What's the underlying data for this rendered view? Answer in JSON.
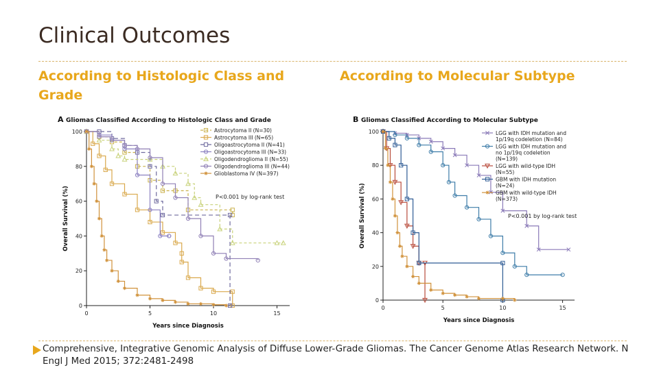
{
  "slide": {
    "title": "Clinical Outcomes",
    "left_heading": "According to Histologic Class and Grade",
    "right_heading": "According to Molecular Subtype",
    "citation": "Comprehensive, Integrative Genomic Analysis of Diffuse Lower-Grade Gliomas. The Cancer Genome Atlas Research Network. N Engl J Med 2015; 372:2481-2498",
    "accent_color": "#e8a71c"
  },
  "chart_data": [
    {
      "type": "line",
      "step": true,
      "panel_letter": "A",
      "title": "Gliomas Classified According to Histologic Class and Grade",
      "xlabel": "Years since Diagnosis",
      "ylabel": "Overall Survival (%)",
      "xlim": [
        0,
        16
      ],
      "ylim": [
        0,
        100
      ],
      "xticks": [
        0,
        5,
        10,
        15
      ],
      "yticks": [
        0,
        20,
        40,
        60,
        80,
        100
      ],
      "annotation": "P<0.001 by log-rank test",
      "legend_position": "top-right",
      "series": [
        {
          "name": "Astrocytoma II (N=30)",
          "color": "#c9b04a",
          "dash": "4,3",
          "marker": "square",
          "points": [
            [
              0,
              100
            ],
            [
              1,
              97
            ],
            [
              2,
              94
            ],
            [
              3,
              88
            ],
            [
              4,
              80
            ],
            [
              5,
              72
            ],
            [
              6,
              66
            ],
            [
              7,
              66
            ],
            [
              8,
              55
            ],
            [
              11.5,
              55
            ],
            [
              11.5,
              52
            ]
          ]
        },
        {
          "name": "Astrocytoma III (N=65)",
          "color": "#d9a84a",
          "dash": "",
          "marker": "square",
          "points": [
            [
              0,
              100
            ],
            [
              0.5,
              93
            ],
            [
              1,
              86
            ],
            [
              1.5,
              78
            ],
            [
              2,
              70
            ],
            [
              3,
              64
            ],
            [
              4,
              55
            ],
            [
              5,
              48
            ],
            [
              6,
              42
            ],
            [
              7,
              36
            ],
            [
              7.5,
              30
            ],
            [
              7.5,
              25
            ],
            [
              8,
              16
            ],
            [
              9,
              10
            ],
            [
              10,
              8
            ],
            [
              11.5,
              8
            ],
            [
              11.5,
              0
            ]
          ]
        },
        {
          "name": "Oligoastrocytoma II (N=41)",
          "color": "#6e6a9e",
          "dash": "6,4",
          "marker": "square",
          "points": [
            [
              0,
              100
            ],
            [
              1,
              100
            ],
            [
              2,
              96
            ],
            [
              3,
              92
            ],
            [
              4,
              88
            ],
            [
              5,
              80
            ],
            [
              5.5,
              60
            ],
            [
              6,
              52
            ],
            [
              11.3,
              52
            ],
            [
              11.3,
              0
            ]
          ]
        },
        {
          "name": "Oligoastrocytoma III (N=33)",
          "color": "#8a7fc0",
          "dash": "",
          "marker": "circle",
          "points": [
            [
              0,
              100
            ],
            [
              1,
              98
            ],
            [
              2,
              95
            ],
            [
              3,
              90
            ],
            [
              4,
              75
            ],
            [
              5,
              55
            ],
            [
              5.8,
              40
            ],
            [
              6.5,
              40
            ],
            [
              6.5,
              40
            ]
          ]
        },
        {
          "name": "Oligodendroglioma II (N=55)",
          "color": "#c8d27a",
          "dash": "4,3",
          "marker": "triangle",
          "points": [
            [
              0,
              100
            ],
            [
              1,
              95
            ],
            [
              2,
              90
            ],
            [
              2.5,
              86
            ],
            [
              3,
              84
            ],
            [
              5,
              84
            ],
            [
              6,
              80
            ],
            [
              7,
              76
            ],
            [
              8,
              70
            ],
            [
              8.5,
              62
            ],
            [
              9,
              58
            ],
            [
              10.5,
              44
            ],
            [
              11.5,
              36
            ],
            [
              15,
              36
            ],
            [
              15.5,
              36
            ]
          ]
        },
        {
          "name": "Oligodendroglioma III (N=44)",
          "color": "#8f7fb5",
          "dash": "",
          "marker": "circle",
          "points": [
            [
              0,
              100
            ],
            [
              1,
              97
            ],
            [
              2,
              95
            ],
            [
              3,
              92
            ],
            [
              4,
              90
            ],
            [
              5,
              85
            ],
            [
              6,
              70
            ],
            [
              7,
              62
            ],
            [
              8,
              50
            ],
            [
              9,
              40
            ],
            [
              10,
              30
            ],
            [
              11,
              27
            ],
            [
              13.5,
              26
            ]
          ]
        },
        {
          "name": "Glioblastoma IV (N=397)",
          "color": "#d0913a",
          "dash": "",
          "marker": "star",
          "points": [
            [
              0,
              100
            ],
            [
              0.2,
              90
            ],
            [
              0.4,
              80
            ],
            [
              0.6,
              70
            ],
            [
              0.8,
              60
            ],
            [
              1,
              50
            ],
            [
              1.2,
              40
            ],
            [
              1.4,
              32
            ],
            [
              1.6,
              26
            ],
            [
              2,
              20
            ],
            [
              2.5,
              14
            ],
            [
              3,
              10
            ],
            [
              4,
              6
            ],
            [
              5,
              4
            ],
            [
              6,
              3
            ],
            [
              7,
              2
            ],
            [
              8,
              1
            ],
            [
              9,
              1
            ],
            [
              10,
              0.5
            ],
            [
              11,
              0
            ]
          ]
        }
      ]
    },
    {
      "type": "line",
      "step": true,
      "panel_letter": "B",
      "title": "Gliomas Classified According to Molecular Subtype",
      "xlabel": "Years since Diagnosis",
      "ylabel": "Overall Survival (%)",
      "xlim": [
        0,
        16
      ],
      "ylim": [
        0,
        100
      ],
      "xticks": [
        0,
        5,
        10,
        15
      ],
      "yticks": [
        0,
        20,
        40,
        60,
        80,
        100
      ],
      "annotation": "P<0.001 by log-rank test",
      "legend_position": "top-right",
      "series": [
        {
          "name": "LGG with IDH mutation and 1p/19q codeletion (N=84)",
          "color": "#8a7ab8",
          "dash": "",
          "marker": "x",
          "points": [
            [
              0,
              100
            ],
            [
              1,
              99
            ],
            [
              2,
              98
            ],
            [
              3,
              96
            ],
            [
              4,
              94
            ],
            [
              5,
              90
            ],
            [
              6,
              86
            ],
            [
              7,
              80
            ],
            [
              8,
              74
            ],
            [
              9,
              64
            ],
            [
              10,
              53
            ],
            [
              12,
              44
            ],
            [
              13,
              30
            ],
            [
              15.5,
              30
            ]
          ]
        },
        {
          "name": "LGG with IDH mutation and no 1p/19q codeletion (N=139)",
          "color": "#3d7ca8",
          "dash": "",
          "marker": "circle",
          "points": [
            [
              0,
              100
            ],
            [
              1,
              98
            ],
            [
              2,
              96
            ],
            [
              3,
              92
            ],
            [
              4,
              88
            ],
            [
              5,
              80
            ],
            [
              5.5,
              70
            ],
            [
              6,
              62
            ],
            [
              7,
              55
            ],
            [
              8,
              48
            ],
            [
              9,
              38
            ],
            [
              10,
              28
            ],
            [
              11,
              20
            ],
            [
              12,
              15
            ],
            [
              15,
              15
            ]
          ]
        },
        {
          "name": "LGG with wild-type IDH (N=55)",
          "color": "#b84a3a",
          "dash": "",
          "marker": "triangle-down",
          "points": [
            [
              0,
              100
            ],
            [
              0.3,
              90
            ],
            [
              0.6,
              80
            ],
            [
              1,
              70
            ],
            [
              1.5,
              58
            ],
            [
              2,
              44
            ],
            [
              2.5,
              32
            ],
            [
              3,
              22
            ],
            [
              3.5,
              22
            ],
            [
              3.5,
              0
            ]
          ]
        },
        {
          "name": "GBM with IDH mutation (N=24)",
          "color": "#2d5a94",
          "dash": "",
          "marker": "square",
          "points": [
            [
              0,
              100
            ],
            [
              0.5,
              96
            ],
            [
              1,
              92
            ],
            [
              1.5,
              80
            ],
            [
              2,
              60
            ],
            [
              2.5,
              40
            ],
            [
              3,
              22
            ],
            [
              10,
              22
            ],
            [
              10,
              0
            ]
          ]
        },
        {
          "name": "GBM with wild-type IDH (N=373)",
          "color": "#d0913a",
          "dash": "",
          "marker": "star",
          "points": [
            [
              0,
              100
            ],
            [
              0.2,
              90
            ],
            [
              0.4,
              80
            ],
            [
              0.6,
              70
            ],
            [
              0.8,
              60
            ],
            [
              1,
              50
            ],
            [
              1.2,
              40
            ],
            [
              1.4,
              32
            ],
            [
              1.6,
              26
            ],
            [
              2,
              20
            ],
            [
              2.5,
              14
            ],
            [
              3,
              10
            ],
            [
              4,
              6
            ],
            [
              5,
              4
            ],
            [
              6,
              3
            ],
            [
              7,
              2
            ],
            [
              8,
              1
            ],
            [
              10,
              1
            ],
            [
              11,
              0
            ]
          ]
        }
      ]
    }
  ]
}
